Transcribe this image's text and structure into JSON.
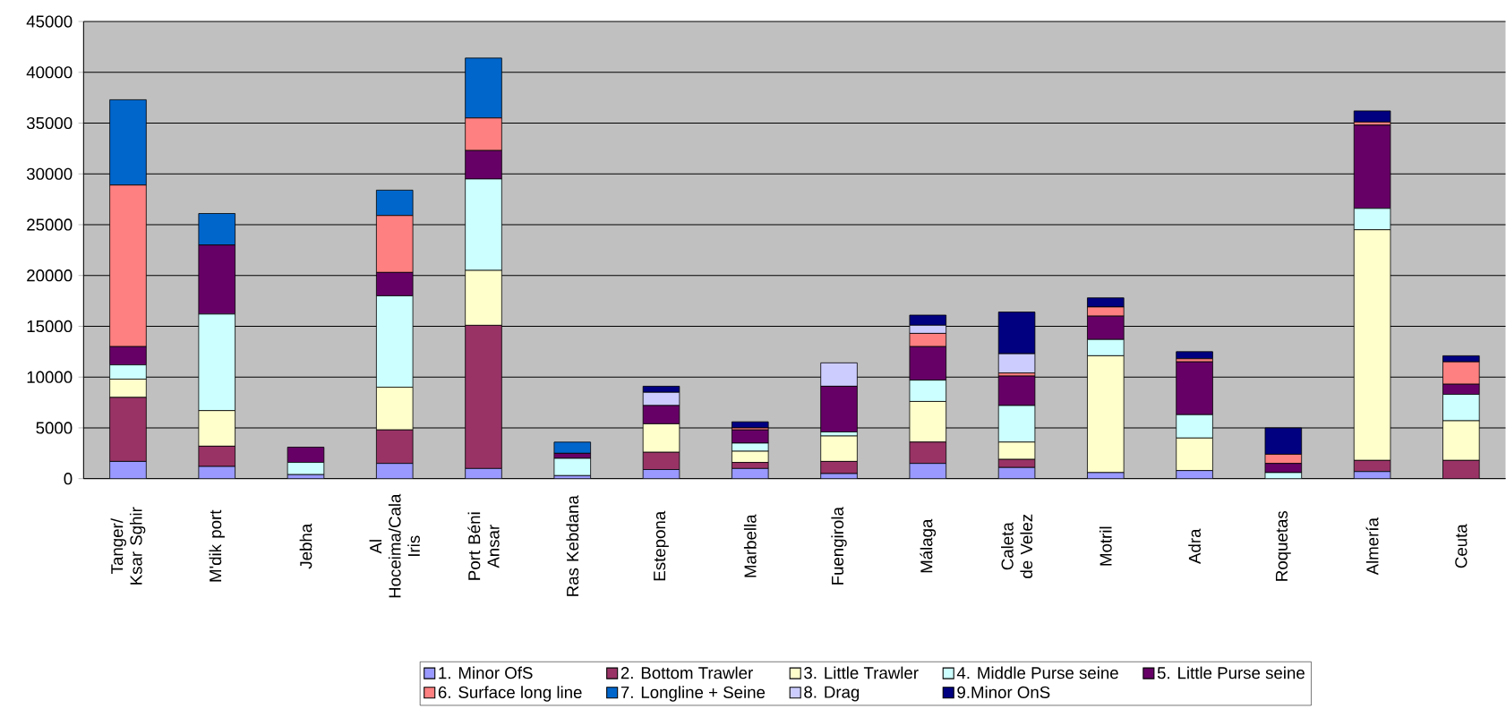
{
  "chart_data": {
    "type": "bar",
    "stacked": true,
    "categories": [
      "Tanger/ Ksar Sghir",
      "M'dik port",
      "Jebha",
      "Al Hoceima/Cala Iris",
      "Port Béni Ansar",
      "Ras Kebdana",
      "Estepona",
      "Marbella",
      "Fuengirola",
      "Málaga",
      "Caleta de Velez",
      "Motril",
      "Adra",
      "Roquetas",
      "Almería",
      "Ceuta"
    ],
    "ylim": [
      0,
      45000
    ],
    "yticks": [
      0,
      5000,
      10000,
      15000,
      20000,
      25000,
      30000,
      35000,
      40000,
      45000
    ],
    "grid": "y",
    "legend": "bottom",
    "series": [
      {
        "name": "1. Minor OfS",
        "color": "#9999ff",
        "values": [
          1700,
          1200,
          400,
          1500,
          1000,
          300,
          900,
          1000,
          500,
          1500,
          1100,
          600,
          800,
          0,
          700,
          0
        ]
      },
      {
        "name": "2. Bottom Trawler",
        "color": "#993366",
        "values": [
          6300,
          2000,
          0,
          3300,
          14100,
          0,
          1700,
          600,
          1200,
          2100,
          800,
          0,
          0,
          0,
          1100,
          1800
        ]
      },
      {
        "name": "3. Little Trawler",
        "color": "#ffffcc",
        "values": [
          1800,
          3500,
          0,
          4200,
          5400,
          0,
          2800,
          1100,
          2500,
          4000,
          1700,
          11500,
          3200,
          0,
          22700,
          3900
        ]
      },
      {
        "name": "4. Middle Purse seine",
        "color": "#ccffff",
        "values": [
          1400,
          9500,
          1200,
          9000,
          9000,
          1700,
          0,
          800,
          400,
          2100,
          3600,
          1600,
          2300,
          600,
          2100,
          2600
        ]
      },
      {
        "name": "5. Little Purse seine",
        "color": "#660066",
        "values": [
          1800,
          6800,
          1500,
          2300,
          2800,
          500,
          1800,
          1300,
          4500,
          3300,
          2900,
          2300,
          5200,
          900,
          8200,
          1000
        ]
      },
      {
        "name": "6. Surface long line",
        "color": "#ff8080",
        "values": [
          15900,
          0,
          0,
          5600,
          3200,
          0,
          0,
          200,
          0,
          1300,
          300,
          900,
          300,
          900,
          300,
          2200
        ]
      },
      {
        "name": "7. Longline + Seine",
        "color": "#0066cc",
        "values": [
          8400,
          3100,
          0,
          2500,
          5900,
          1100,
          0,
          0,
          0,
          0,
          0,
          0,
          0,
          0,
          0,
          0
        ]
      },
      {
        "name": "8. Drag",
        "color": "#ccccff",
        "values": [
          0,
          0,
          0,
          0,
          0,
          0,
          1300,
          0,
          2300,
          800,
          1900,
          0,
          0,
          0,
          0,
          0
        ]
      },
      {
        "name": "9.Minor OnS",
        "color": "#000080",
        "values": [
          0,
          0,
          0,
          0,
          0,
          0,
          600,
          600,
          0,
          1000,
          4100,
          900,
          700,
          2600,
          1100,
          600
        ]
      }
    ]
  }
}
